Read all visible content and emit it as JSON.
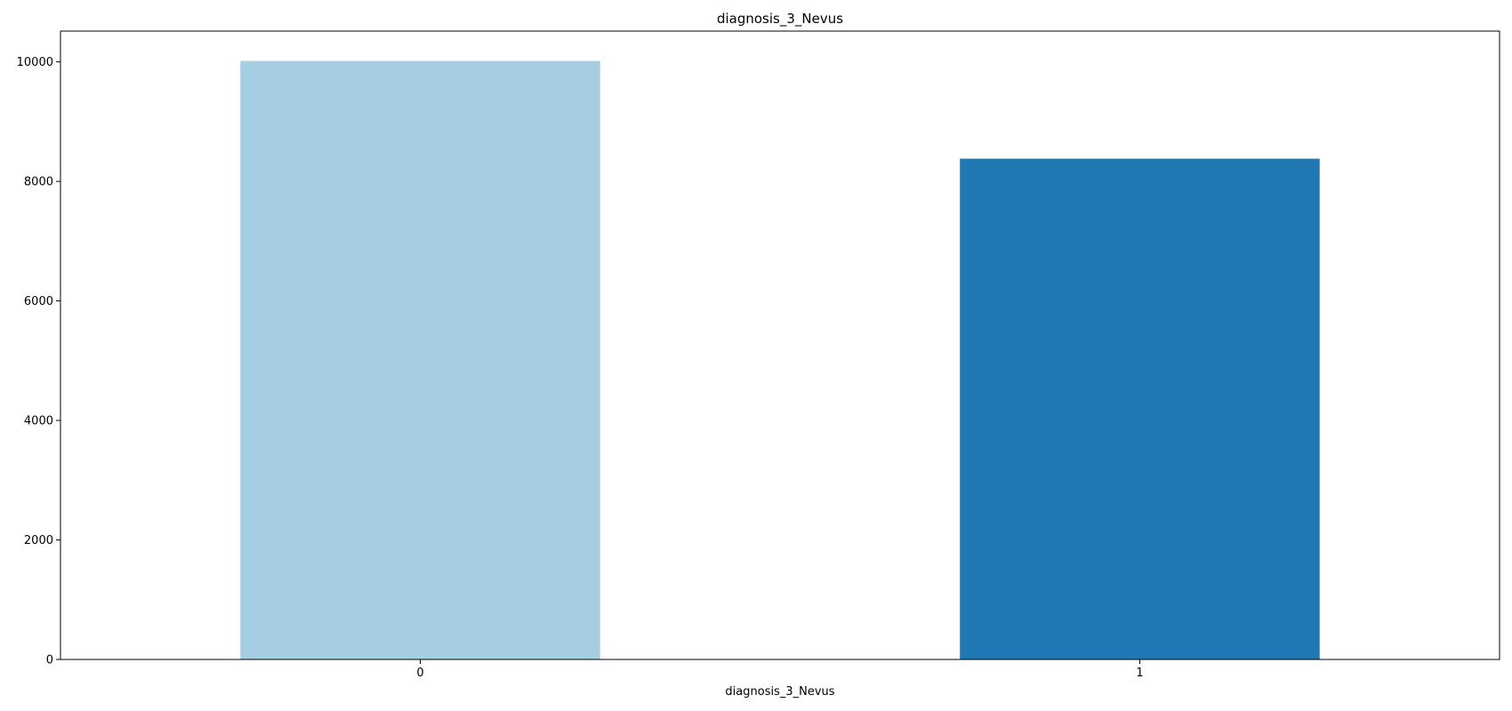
{
  "chart_data": {
    "type": "bar",
    "title": "diagnosis_3_Nevus",
    "xlabel": "diagnosis_3_Nevus",
    "ylabel": "",
    "categories": [
      "0",
      "1"
    ],
    "values": [
      10015,
      8380
    ],
    "colors": [
      "#a6cee3",
      "#1f78b4"
    ],
    "ylim": [
      0,
      10515
    ],
    "yticks": [
      0,
      2000,
      4000,
      6000,
      8000,
      10000
    ],
    "grid": false,
    "legend": "none"
  }
}
